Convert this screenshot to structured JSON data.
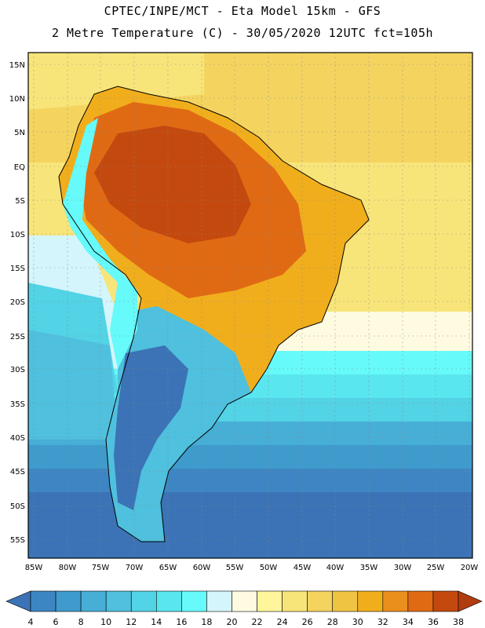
{
  "header": {
    "line1": "CPTEC/INPE/MCT -  Eta Model 15km - GFS",
    "line2": "2 Metre Temperature (C) - 30/05/2020 12UTC fct=105h"
  },
  "map": {
    "lat_labels": [
      "15N",
      "10N",
      "5N",
      "EQ",
      "5S",
      "10S",
      "15S",
      "20S",
      "25S",
      "30S",
      "35S",
      "40S",
      "45S",
      "50S",
      "55S"
    ],
    "lon_labels": [
      "85W",
      "80W",
      "75W",
      "70W",
      "65W",
      "60W",
      "55W",
      "50W",
      "45W",
      "40W",
      "35W",
      "30W",
      "25W",
      "20W"
    ]
  },
  "colorbar": {
    "labels": [
      "4",
      "6",
      "8",
      "10",
      "12",
      "14",
      "16",
      "18",
      "20",
      "22",
      "24",
      "26",
      "28",
      "30",
      "32",
      "34",
      "36",
      "38"
    ],
    "colors": [
      "#3b73b6",
      "#3d86c3",
      "#3f9bcc",
      "#47aed6",
      "#4fc0dd",
      "#52d3e6",
      "#5ae6ee",
      "#66fafa",
      "#d4f5fb",
      "#fffbe0",
      "#fff59a",
      "#f8e57a",
      "#f4d45f",
      "#f0c443",
      "#f1ae1c",
      "#ea8e1c",
      "#e06a14",
      "#c4490e",
      "#b13c10"
    ]
  }
}
